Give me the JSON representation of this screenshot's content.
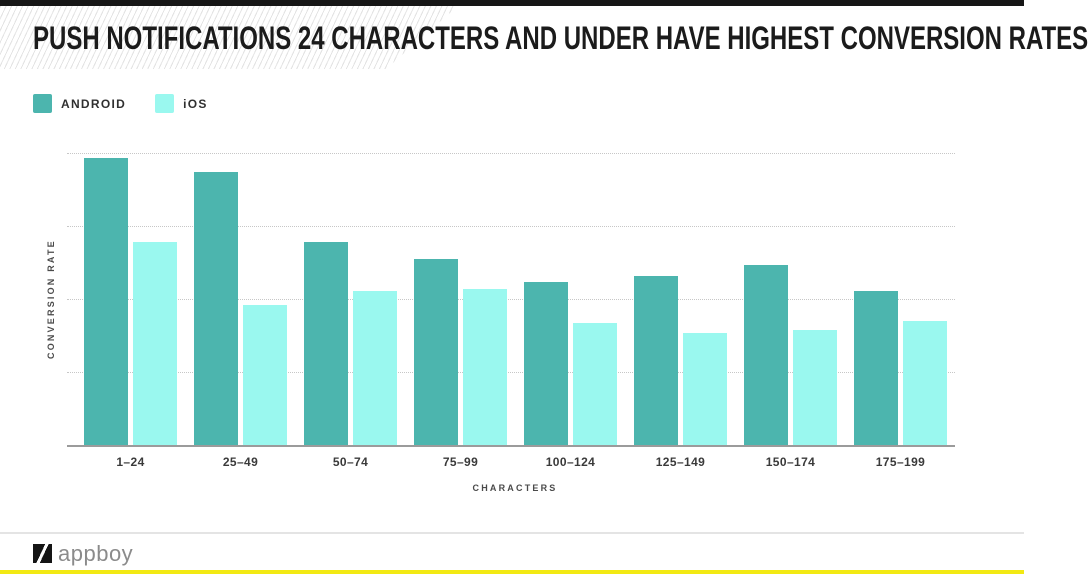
{
  "title": "PUSH NOTIFICATIONS 24 CHARACTERS AND UNDER HAVE HIGHEST CONVERSION RATES",
  "colors": {
    "android_bar": "#4cb5ae",
    "ios_bar": "#9af8ef",
    "top_bar": "#161616",
    "bottom_accent": "#f2e913",
    "gridline": "#c7c7c7",
    "axis_line": "#9b9b9b"
  },
  "legend": {
    "items": [
      {
        "label": "ANDROID",
        "color": "#4cb5ae"
      },
      {
        "label": "iOS",
        "color": "#9af8ef"
      }
    ]
  },
  "chart_data": {
    "type": "bar",
    "title": "PUSH NOTIFICATIONS 24 CHARACTERS AND UNDER HAVE HIGHEST CONVERSION RATES",
    "categories": [
      "1–24",
      "25–49",
      "50–74",
      "75–99",
      "100–124",
      "125–149",
      "150–174",
      "175–199"
    ],
    "series": [
      {
        "name": "ANDROID",
        "color": "#4cb5ae",
        "values": [
          3.93,
          3.74,
          2.78,
          2.55,
          2.23,
          2.32,
          2.47,
          2.11
        ]
      },
      {
        "name": "iOS",
        "color": "#9af8ef",
        "values": [
          2.78,
          1.92,
          2.11,
          2.14,
          1.67,
          1.53,
          1.58,
          1.7
        ]
      }
    ],
    "xlabel": "CHARACTERS",
    "ylabel": "CONVERSION RATE",
    "ylim": [
      0,
      4.35
    ],
    "y_axis_tick_labels": "none (unlabeled axis, values in gridline units)",
    "gridlines": {
      "style": "dotted",
      "values": [
        1,
        2,
        3,
        4
      ]
    },
    "legend_position": "top-left",
    "grid": true
  },
  "footer": {
    "brand": "appboy",
    "icon": "appboy-slash-logo"
  }
}
